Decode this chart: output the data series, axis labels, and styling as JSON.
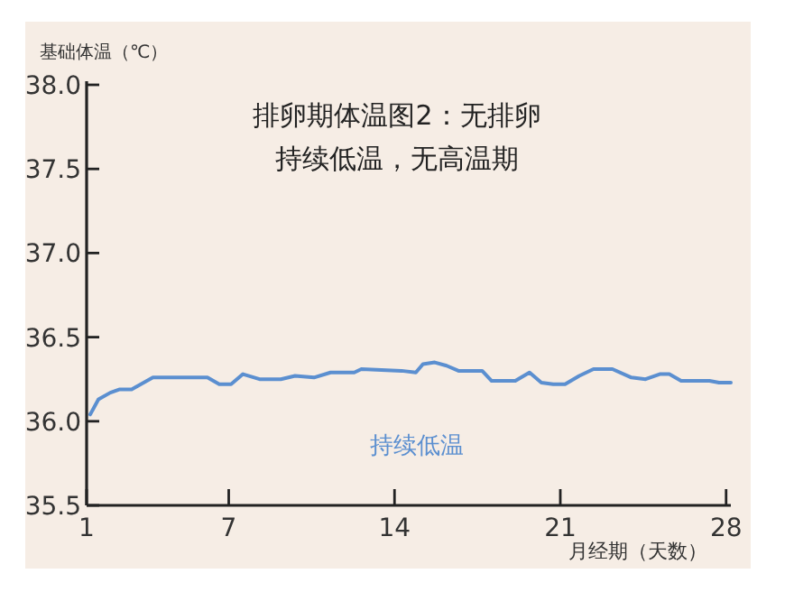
{
  "chart_data": {
    "type": "line",
    "title": "排卵期体温图2：无排卵",
    "subtitle": "持续低温，无高温期",
    "ylabel": "基础体温（℃）",
    "xlabel": "月经期（天数）",
    "xlim": [
      1,
      28.2
    ],
    "xticks": [
      1,
      7,
      14,
      21,
      28
    ],
    "ylim": [
      35.5,
      38.0
    ],
    "yticks": [
      {
        "value": 35.5,
        "label": "35.5"
      },
      {
        "value": 36.0,
        "label": "36.0"
      },
      {
        "value": 36.5,
        "label": "36.5"
      },
      {
        "value": 37.0,
        "label": "37.0"
      },
      {
        "value": 37.5,
        "label": "37.5"
      },
      {
        "value": 38.0,
        "label": "38.0"
      }
    ],
    "series": [
      {
        "name": "持续低温",
        "color": "#5b8fd0",
        "x": [
          1.15,
          1.5,
          2.0,
          2.4,
          2.9,
          3.8,
          6.1,
          6.6,
          7.1,
          7.6,
          8.3,
          9.2,
          9.8,
          10.6,
          11.3,
          12.3,
          12.6,
          14.3,
          14.9,
          15.2,
          15.7,
          16.2,
          16.7,
          17.7,
          18.1,
          19.1,
          19.7,
          20.2,
          20.7,
          21.2,
          21.8,
          22.4,
          23.2,
          24.0,
          24.6,
          25.2,
          25.6,
          26.1,
          27.3,
          27.7,
          28.2
        ],
        "values": [
          36.04,
          36.13,
          36.17,
          36.19,
          36.19,
          36.26,
          36.26,
          36.22,
          36.22,
          36.28,
          36.25,
          36.25,
          36.27,
          36.26,
          36.29,
          36.29,
          36.31,
          36.3,
          36.29,
          36.34,
          36.35,
          36.33,
          36.3,
          36.3,
          36.24,
          36.24,
          36.29,
          36.23,
          36.22,
          36.22,
          36.27,
          36.31,
          36.31,
          36.26,
          36.25,
          36.28,
          36.28,
          36.24,
          36.24,
          36.23,
          36.23
        ]
      }
    ]
  }
}
